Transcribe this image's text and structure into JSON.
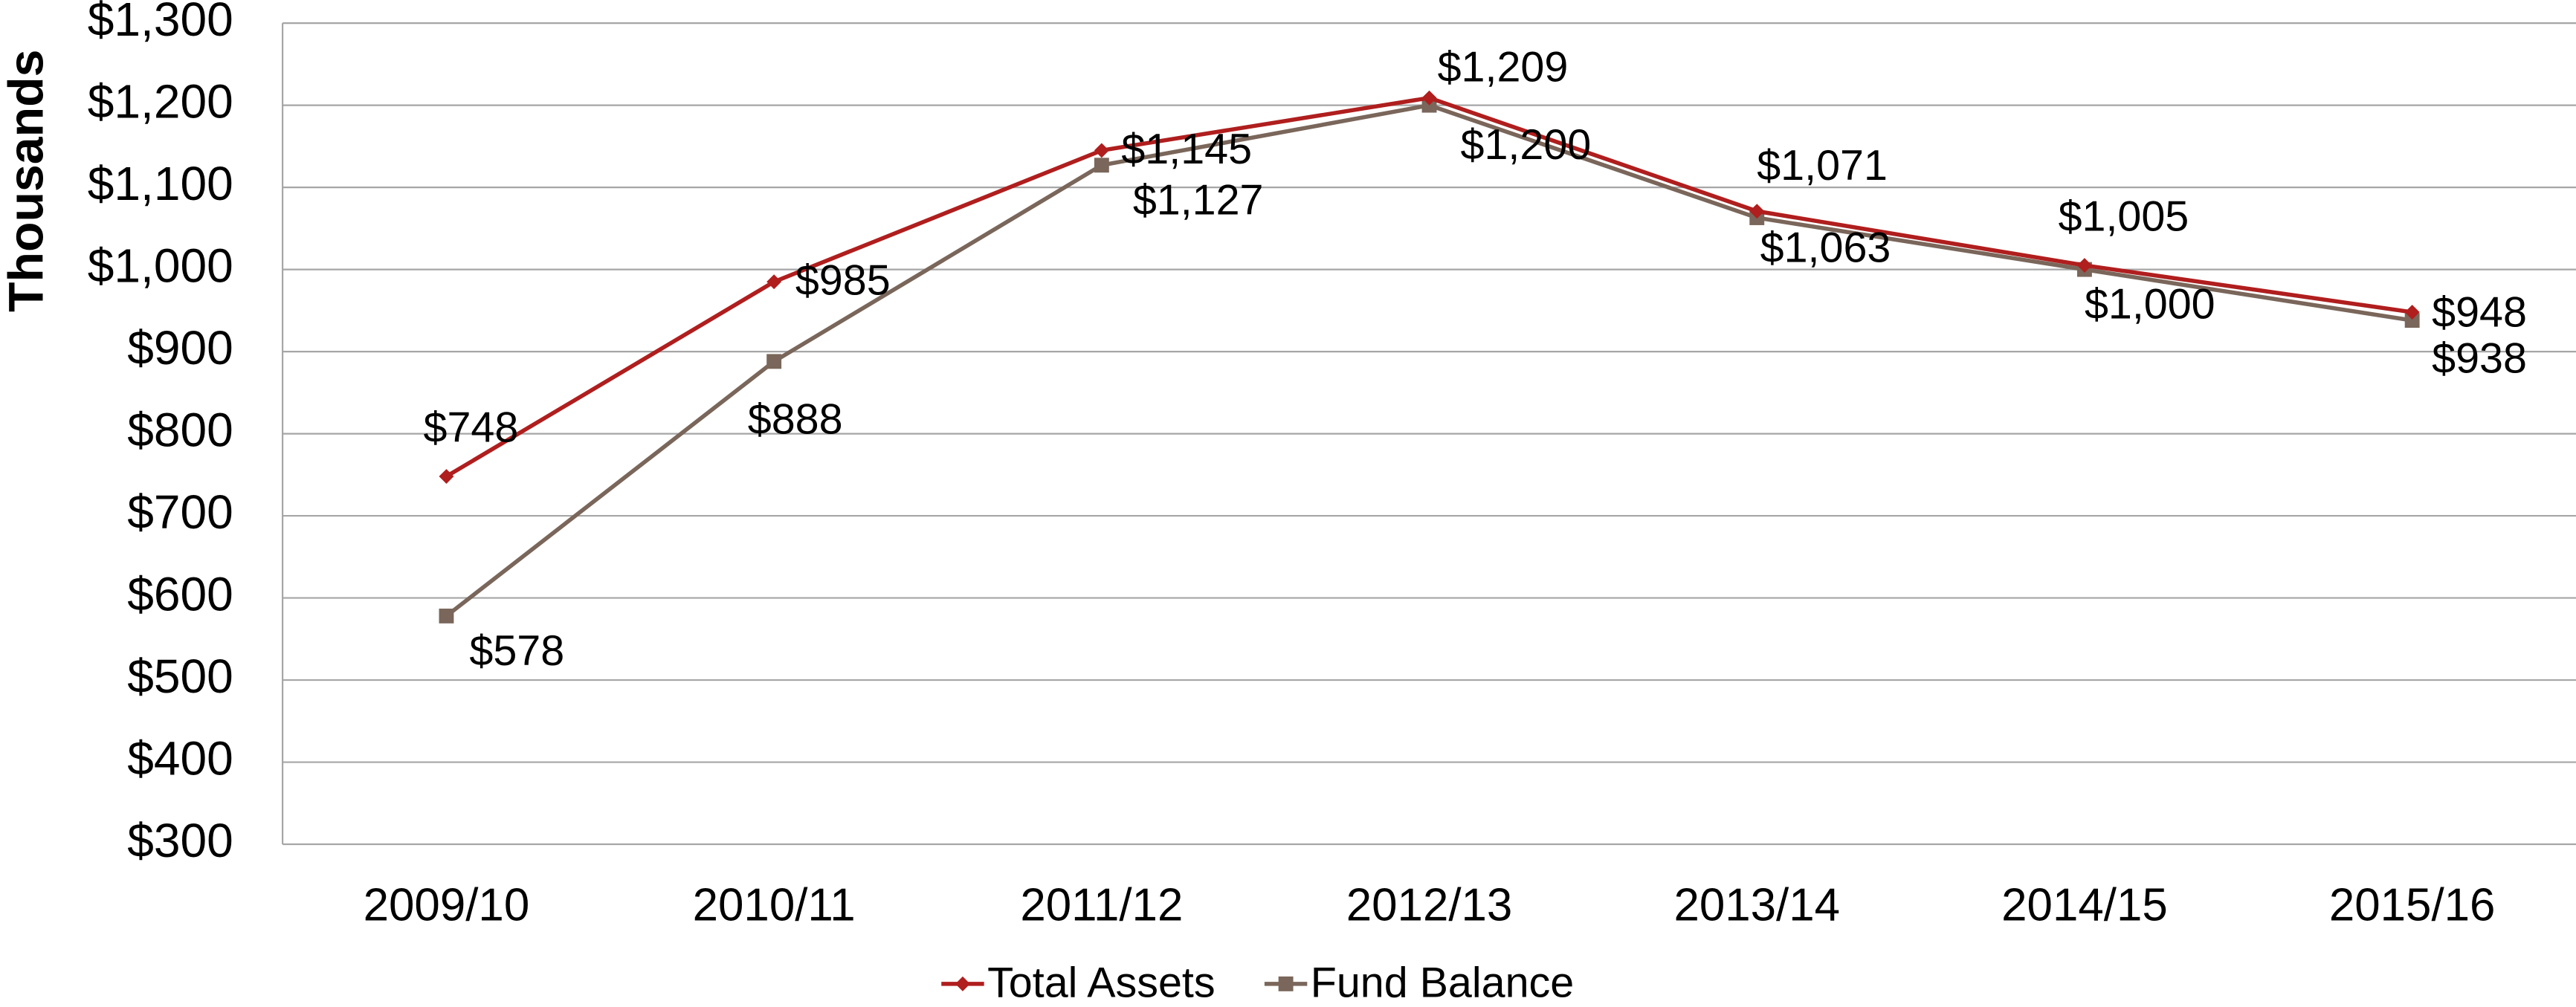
{
  "chart_data": {
    "type": "line",
    "y_axis_label": "Thousands",
    "categories": [
      "2009/10",
      "2010/11",
      "2011/12",
      "2012/13",
      "2013/14",
      "2014/15",
      "2015/16"
    ],
    "series": [
      {
        "name": "Total Assets",
        "color": "#b01e1e",
        "marker": "diamond",
        "values": [
          748,
          985,
          1145,
          1209,
          1071,
          1005,
          948
        ],
        "value_labels": [
          "$748",
          "$985",
          "$1,145",
          "$1,209",
          "$1,071",
          "$1,005",
          "$948"
        ]
      },
      {
        "name": "Fund Balance",
        "color": "#7a665a",
        "marker": "square",
        "values": [
          578,
          888,
          1127,
          1200,
          1063,
          1000,
          938
        ],
        "value_labels": [
          "$578",
          "$888",
          "$1,127",
          "$1,200",
          "$1,063",
          "$1,000",
          "$938"
        ]
      }
    ],
    "ylim": [
      300,
      1300
    ],
    "yticks": [
      {
        "value": 300,
        "label": "$300"
      },
      {
        "value": 400,
        "label": "$400"
      },
      {
        "value": 500,
        "label": "$500"
      },
      {
        "value": 600,
        "label": "$600"
      },
      {
        "value": 700,
        "label": "$700"
      },
      {
        "value": 800,
        "label": "$800"
      },
      {
        "value": 900,
        "label": "$900"
      },
      {
        "value": 1000,
        "label": "$1,000"
      },
      {
        "value": 1100,
        "label": "$1,100"
      },
      {
        "value": 1200,
        "label": "$1,200"
      },
      {
        "value": 1300,
        "label": "$1,300"
      }
    ],
    "grid": true,
    "legend": "bottom"
  }
}
